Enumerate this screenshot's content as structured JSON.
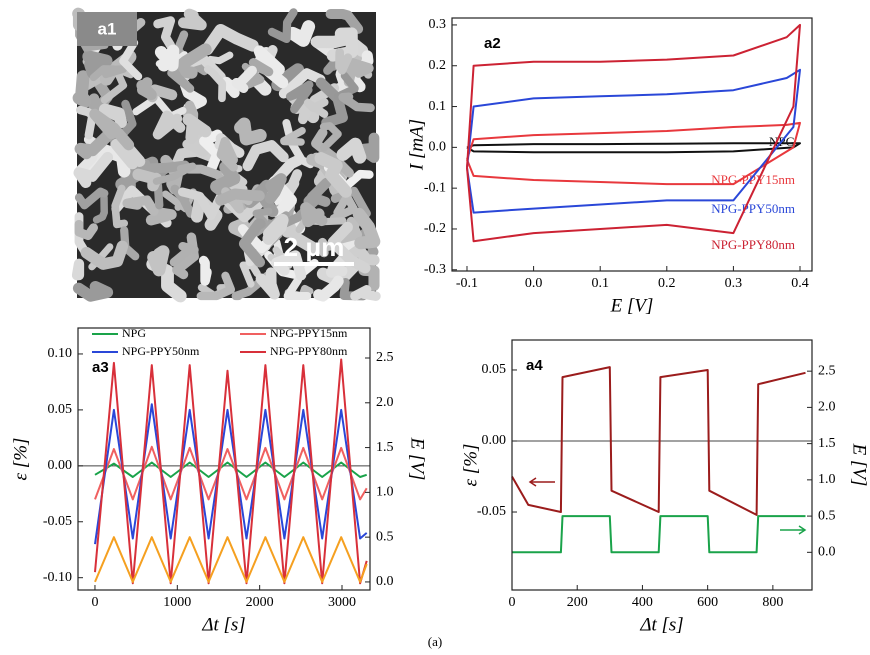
{
  "image": {
    "label": "a1",
    "scale_bar": "2 μm"
  },
  "chart_data": [
    {
      "type": "line",
      "panel": "a2",
      "x_label": "E  [V]",
      "y_label": "I  [mA]",
      "x": [
        -0.1,
        -0.09,
        0,
        0.1,
        0.2,
        0.3,
        0.38,
        0.4,
        0.39,
        0.3,
        0.2,
        0.1,
        0,
        -0.09,
        -0.1
      ],
      "series": [
        {
          "name": "NPG",
          "color": "#111111",
          "values": [
            0,
            0.005,
            0.008,
            0.008,
            0.009,
            0.01,
            0.01,
            0.01,
            0,
            -0.01,
            -0.012,
            -0.012,
            -0.012,
            -0.01,
            0
          ]
        },
        {
          "name": "NPG-PPY15nm",
          "color": "#e8383d",
          "values": [
            -0.03,
            0.02,
            0.03,
            0.035,
            0.04,
            0.05,
            0.055,
            0.06,
            0,
            -0.09,
            -0.09,
            -0.085,
            -0.08,
            -0.07,
            -0.03
          ]
        },
        {
          "name": "NPG-PPY50nm",
          "color": "#2a47d8",
          "values": [
            -0.05,
            0.1,
            0.12,
            0.125,
            0.13,
            0.14,
            0.17,
            0.19,
            0.05,
            -0.13,
            -0.13,
            -0.14,
            -0.15,
            -0.16,
            -0.05
          ]
        },
        {
          "name": "NPG-PPY80nm",
          "color": "#cc2233",
          "values": [
            -0.05,
            0.2,
            0.21,
            0.21,
            0.215,
            0.225,
            0.27,
            0.3,
            0.1,
            -0.21,
            -0.19,
            -0.2,
            -0.21,
            -0.23,
            -0.05
          ]
        }
      ],
      "xlim": [
        -0.1225,
        0.418
      ],
      "xticks": [
        -0.1,
        {
          "value": 0,
          "label": "0.0"
        },
        0.1,
        0.2,
        0.3,
        0.4
      ],
      "ylim": [
        -0.303,
        0.317
      ],
      "yticks": [
        -0.3,
        -0.2,
        -0.1,
        {
          "value": 0,
          "label": "0.0"
        },
        0.1,
        0.2,
        0.3
      ]
    },
    {
      "type": "line",
      "panel": "a3",
      "x_label": "Δt  [s]",
      "y_label": "ε  [%]",
      "y2_label": "E  [V]",
      "x": [
        0,
        230,
        460,
        690,
        920,
        1150,
        1380,
        1610,
        1840,
        2070,
        2300,
        2530,
        2760,
        2990,
        3220,
        3300
      ],
      "series": [
        {
          "name": "NPG",
          "color": "#1aa34a",
          "values": [
            -0.008,
            0.002,
            -0.01,
            0.003,
            -0.01,
            0.003,
            -0.01,
            0.003,
            -0.01,
            0.003,
            -0.01,
            0.003,
            -0.01,
            0.003,
            -0.01,
            -0.008
          ]
        },
        {
          "name": "NPG-PPY15nm",
          "color": "#f06060",
          "values": [
            -0.03,
            0.015,
            -0.03,
            0.017,
            -0.03,
            0.016,
            -0.03,
            0.015,
            -0.03,
            0.016,
            -0.03,
            0.016,
            -0.03,
            0.016,
            -0.03,
            -0.02
          ]
        },
        {
          "name": "NPG-PPY50nm",
          "color": "#2a47d8",
          "values": [
            -0.07,
            0.05,
            -0.065,
            0.055,
            -0.065,
            0.05,
            -0.065,
            0.05,
            -0.065,
            0.05,
            -0.065,
            0.05,
            -0.065,
            0.05,
            -0.065,
            -0.06
          ]
        },
        {
          "name": "NPG-PPY80nm",
          "color": "#d8303a",
          "values": [
            -0.095,
            0.092,
            -0.105,
            0.09,
            -0.105,
            0.09,
            -0.105,
            0.085,
            -0.105,
            0.09,
            -0.105,
            0.09,
            -0.105,
            0.095,
            -0.105,
            -0.085
          ]
        },
        {
          "color": "#f5a020",
          "axis": "y2",
          "values": [
            0,
            0.5,
            0,
            0.5,
            0,
            0.5,
            0,
            0.5,
            0,
            0.5,
            0,
            0.5,
            0,
            0.5,
            0,
            0.2
          ]
        }
      ],
      "xlim": [
        -206,
        3340
      ],
      "xticks": [
        0,
        1000,
        2000,
        3000
      ],
      "ylim": [
        -0.111,
        0.1232
      ],
      "yticks": [
        {
          "value": -0.1,
          "label": "-0.10"
        },
        -0.05,
        {
          "value": 0,
          "label": "0.00"
        },
        0.05,
        {
          "value": 0.1,
          "label": "0.10"
        }
      ],
      "y2lim": [
        -0.09,
        2.835
      ],
      "y2ticks": [
        {
          "value": 0,
          "label": "0.0"
        },
        0.5,
        {
          "value": 1,
          "label": "1.0"
        },
        1.5,
        {
          "value": 2,
          "label": "2.0"
        },
        2.5
      ]
    },
    {
      "type": "line",
      "panel": "a4",
      "x_label": "Δt  [s]",
      "y_label": "ε  [%]",
      "y2_label": "E  [V]",
      "x": [
        0,
        50,
        150,
        155,
        300,
        305,
        450,
        455,
        600,
        605,
        750,
        755,
        900
      ],
      "series": [
        {
          "color": "#9b1c1c",
          "values": [
            -0.025,
            -0.045,
            -0.05,
            0.045,
            0.052,
            -0.035,
            -0.05,
            0.045,
            0.05,
            -0.035,
            -0.052,
            0.04,
            0.048
          ]
        },
        {
          "color": "#1aa34a",
          "axis": "y2",
          "values": [
            0,
            0,
            0,
            0.5,
            0.5,
            0,
            0,
            0.5,
            0.5,
            0,
            0,
            0.5,
            0.5
          ]
        }
      ],
      "xlim": [
        0,
        920
      ],
      "xticks": [
        0,
        200,
        400,
        600,
        800
      ],
      "ylim": [
        -0.1049,
        0.0711
      ],
      "yticks": [
        -0.05,
        {
          "value": 0,
          "label": "0.00"
        },
        0.05
      ],
      "y2lim": [
        -0.52,
        2.93
      ],
      "y2ticks": [
        {
          "value": 0,
          "label": "0.0"
        },
        0.5,
        {
          "value": 1,
          "label": "1.0"
        },
        1.5,
        {
          "value": 2,
          "label": "2.0"
        },
        2.5
      ]
    }
  ],
  "caption": "(a)"
}
